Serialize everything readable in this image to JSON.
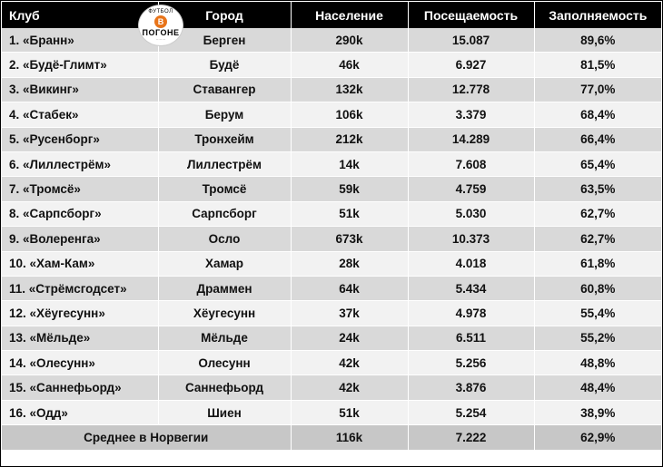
{
  "logo": {
    "top": "ФУТБОЛ",
    "mid": "В",
    "word": "ПОГОНЕ",
    "sub": "········"
  },
  "headers": [
    "Клуб",
    "Город",
    "Население",
    "Посещаемость",
    "Заполняемость"
  ],
  "rows": [
    [
      "1. «Бранн»",
      "Берген",
      "290k",
      "15.087",
      "89,6%"
    ],
    [
      "2. «Будё-Глимт»",
      "Будё",
      "46k",
      "6.927",
      "81,5%"
    ],
    [
      "3. «Викинг»",
      "Ставангер",
      "132k",
      "12.778",
      "77,0%"
    ],
    [
      "4. «Стабек»",
      "Берум",
      "106k",
      "3.379",
      "68,4%"
    ],
    [
      "5. «Русенборг»",
      "Тронхейм",
      "212k",
      "14.289",
      "66,4%"
    ],
    [
      "6. «Лиллестрём»",
      "Лиллестрём",
      "14k",
      "7.608",
      "65,4%"
    ],
    [
      "7. «Тромсё»",
      "Тромсё",
      "59k",
      "4.759",
      "63,5%"
    ],
    [
      "8. «Сарпсборг»",
      "Сарпсборг",
      "51k",
      "5.030",
      "62,7%"
    ],
    [
      "9. «Волеренга»",
      "Осло",
      "673k",
      "10.373",
      "62,7%"
    ],
    [
      "10. «Хам-Кам»",
      "Хамар",
      "28k",
      "4.018",
      "61,8%"
    ],
    [
      "11. «Стрёмсгодсет»",
      "Драммен",
      "64k",
      "5.434",
      "60,8%"
    ],
    [
      "12. «Хёугесунн»",
      "Хёугесунн",
      "37k",
      "4.978",
      "55,4%"
    ],
    [
      "13. «Мёльде»",
      "Мёльде",
      "24k",
      "6.511",
      "55,2%"
    ],
    [
      "14. «Олесунн»",
      "Олесунн",
      "42k",
      "5.256",
      "48,8%"
    ],
    [
      "15. «Саннефьорд»",
      "Саннефьорд",
      "42k",
      "3.876",
      "48,4%"
    ],
    [
      "16. «Одд»",
      "Шиен",
      "51k",
      "5.254",
      "38,9%"
    ]
  ],
  "total": {
    "label": "Среднее в Норвегии",
    "population": "116k",
    "attendance": "7.222",
    "fill": "62,9%"
  }
}
